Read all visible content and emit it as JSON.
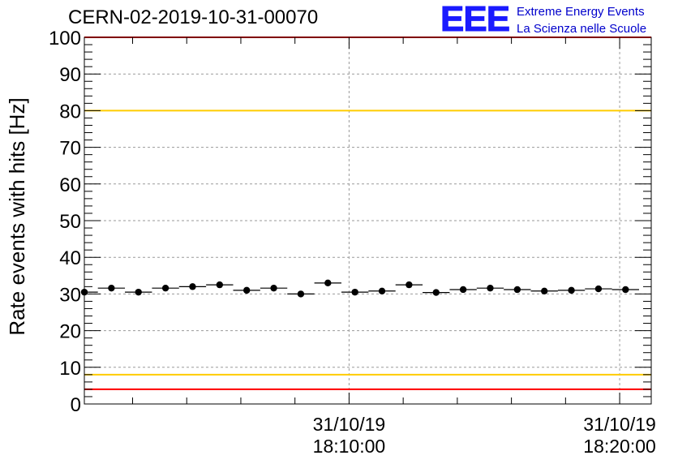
{
  "header": {
    "run_title": "CERN-02-2019-10-31-00070",
    "logo_mark": "EEE",
    "logo_line1": "Extreme Energy Events",
    "logo_line2": "La Scienza nelle Scuole",
    "logo_color": "#1a1aff"
  },
  "chart_data": {
    "type": "scatter",
    "title": "CERN-02-2019-10-31-00070",
    "ylabel": "Rate events with hits [Hz]",
    "xlabel": "",
    "ylim": [
      0,
      100
    ],
    "xlim": [
      "18:00:13",
      "18:21:10"
    ],
    "yticks": [
      0,
      10,
      20,
      30,
      40,
      50,
      60,
      70,
      80,
      90,
      100
    ],
    "xticks": [
      {
        "time": "18:10:00",
        "label_line1": "31/10/19",
        "label_line2": "18:10:00"
      },
      {
        "time": "18:20:00",
        "label_line1": "31/10/19",
        "label_line2": "18:20:00"
      }
    ],
    "grid": true,
    "bin_width_s": 60,
    "series": [
      {
        "x": [
          "18:00:13",
          "18:01:13",
          "18:02:13",
          "18:03:13",
          "18:04:13",
          "18:05:13",
          "18:06:13",
          "18:07:13",
          "18:08:13",
          "18:09:13",
          "18:10:13",
          "18:11:13",
          "18:12:13",
          "18:13:13",
          "18:14:13",
          "18:15:13",
          "18:16:13",
          "18:17:13",
          "18:18:13",
          "18:19:13",
          "18:20:13"
        ],
        "y": [
          30.5,
          31.6,
          30.5,
          31.6,
          32.0,
          32.5,
          31.0,
          31.6,
          30.0,
          33.0,
          30.5,
          30.8,
          32.5,
          30.4,
          31.2,
          31.6,
          31.2,
          30.8,
          31.0,
          31.4,
          31.2
        ],
        "color": "#000000"
      }
    ],
    "reference_lines": [
      {
        "y": 100,
        "color": "#ff0000"
      },
      {
        "y": 80,
        "color": "#ffcc00"
      },
      {
        "y": 8,
        "color": "#ffcc00"
      },
      {
        "y": 4,
        "color": "#ff0000"
      }
    ]
  }
}
